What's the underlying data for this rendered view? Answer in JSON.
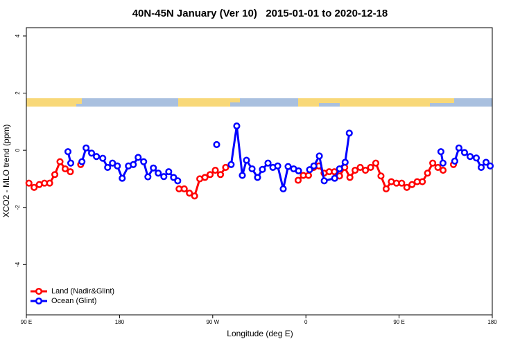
{
  "chart_data": {
    "type": "line",
    "title": "40N-45N January (Ver 10)   2015-01-01 to 2020-12-18",
    "x_label": "Longitude (deg E)",
    "y_label": "XCO2 - MLO trend (ppm)",
    "xlim": [
      90,
      540
    ],
    "xticks": [
      {
        "value": 90,
        "label": "90 E"
      },
      {
        "value": 180,
        "label": "180"
      },
      {
        "value": 270,
        "label": "90 W"
      },
      {
        "value": 360,
        "label": "0"
      },
      {
        "value": 450,
        "label": "90 E"
      },
      {
        "value": 540,
        "label": "180"
      }
    ],
    "ylim": [
      -5.76,
      4.29
    ],
    "yticks": [
      -4,
      -2,
      0,
      2,
      4
    ],
    "legend": "bottomleft",
    "series": [
      {
        "name": "Land (Nadir&Glint)",
        "color": "#ff0000",
        "x": [
          92.5,
          97.5,
          102.5,
          107.5,
          112.5,
          117.5,
          122.5,
          127.5,
          132.5,
          null,
          142.5,
          null,
          237.5,
          242.5,
          247.5,
          252.5,
          257.5,
          262.5,
          267.5,
          272.5,
          277.5,
          282.5,
          null,
          352.5,
          357.5,
          362.5,
          367.5,
          372.5,
          377.5,
          382.5,
          387.5,
          392.5,
          397.5,
          402.5,
          407.5,
          412.5,
          417.5,
          422.5,
          427.5,
          432.5,
          437.5,
          442.5,
          447.5,
          452.5,
          457.5,
          462.5,
          467.5,
          472.5,
          477.5,
          482.5,
          487.5,
          492.5,
          null,
          502.5
        ],
        "values": [
          -1.15,
          -1.3,
          -1.2,
          -1.15,
          -1.15,
          -0.85,
          -0.4,
          -0.65,
          -0.75,
          null,
          -0.5,
          null,
          -1.35,
          -1.35,
          -1.5,
          -1.6,
          -1.0,
          -0.95,
          -0.85,
          -0.7,
          -0.85,
          -0.6,
          null,
          -1.05,
          -0.88,
          -0.88,
          -0.6,
          -0.55,
          -0.8,
          -0.75,
          -0.75,
          -0.9,
          -0.6,
          -0.95,
          -0.7,
          -0.6,
          -0.7,
          -0.6,
          -0.45,
          -0.9,
          -1.35,
          -1.1,
          -1.15,
          -1.15,
          -1.3,
          -1.2,
          -1.1,
          -1.1,
          -0.8,
          -0.45,
          -0.6,
          -0.7,
          null,
          -0.5
        ]
      },
      {
        "name": "Ocean (Glint)",
        "color": "#0000ff",
        "x": [
          130.2,
          132.9,
          null,
          143.7,
          147.7,
          153.0,
          157.7,
          163.8,
          168.5,
          173.2,
          177.9,
          182.6,
          188.6,
          193.3,
          198.0,
          203.3,
          207.4,
          212.7,
          217.4,
          222.8,
          227.5,
          232.2,
          236.2,
          null,
          273.8,
          null,
          287.8,
          293.2,
          298.6,
          302.6,
          308.0,
          313.3,
          318.0,
          323.4,
          328.1,
          332.8,
          338.1,
          342.8,
          348.2,
          352.9,
          null,
          363.6,
          367.7,
          373.0,
          377.7,
          387.8,
          392.5,
          397.9,
          401.9,
          null,
          490.4,
          492.4,
          null,
          503.8,
          507.8,
          513.2,
          518.6,
          524.6,
          529.3,
          534.0,
          538.0
        ],
        "values": [
          -0.05,
          -0.45,
          null,
          -0.4,
          0.08,
          -0.1,
          -0.22,
          -0.28,
          -0.6,
          -0.45,
          -0.55,
          -0.98,
          -0.55,
          -0.5,
          -0.25,
          -0.4,
          -0.93,
          -0.62,
          -0.8,
          -0.92,
          -0.75,
          -0.95,
          -1.07,
          null,
          0.2,
          null,
          -0.5,
          0.85,
          -0.88,
          -0.35,
          -0.65,
          -0.95,
          -0.67,
          -0.45,
          -0.6,
          -0.55,
          -1.35,
          -0.57,
          -0.65,
          -0.72,
          null,
          -0.68,
          -0.55,
          -0.2,
          -1.07,
          -0.98,
          -0.65,
          -0.42,
          0.6,
          null,
          -0.05,
          -0.45,
          null,
          -0.38,
          0.08,
          -0.08,
          -0.22,
          -0.27,
          -0.6,
          -0.42,
          -0.55
        ]
      }
    ]
  }
}
